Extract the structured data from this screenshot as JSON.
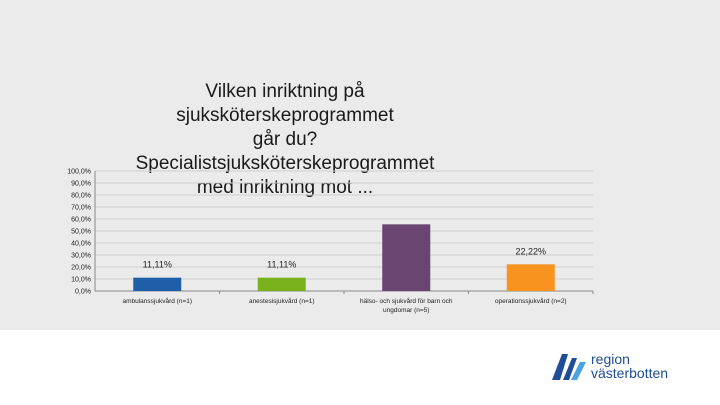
{
  "chart_data": {
    "type": "bar",
    "title": "Vilken inriktning på sjuksköterskeprogrammet går du? Specialistsjuksköterskeprogrammet med inriktning mot ...",
    "title_lines": [
      "Vilken inriktning på sjuksköterskeprogrammet",
      "går du? Specialistsjuksköterskeprogrammet",
      "med inriktning mot ..."
    ],
    "categories": [
      "ambulanssjukvård (n=1)",
      "anestesisjukvård (n=1)",
      "hälso- och sjukvård för barn och ungdomar (n=5)",
      "operationssjukvård (n=2)"
    ],
    "category_lines": [
      [
        "ambulanssjukvård (n=1)"
      ],
      [
        "anestesisjukvård (n=1)"
      ],
      [
        "hälso- och sjukvård för barn och",
        "ungdomar (n=5)"
      ],
      [
        "operationssjukvård (n=2)"
      ]
    ],
    "values": [
      11.11,
      11.11,
      55.56,
      22.22
    ],
    "data_labels": [
      "11,11%",
      "11,11%",
      "",
      "22,22%"
    ],
    "colors": [
      "#1f5fa8",
      "#7ab21d",
      "#6b4571",
      "#f7931e"
    ],
    "ylim": [
      0,
      100
    ],
    "yticks": [
      "0,0%",
      "10,0%",
      "20,0%",
      "30,0%",
      "40,0%",
      "50,0%",
      "60,0%",
      "70,0%",
      "80,0%",
      "90,0%",
      "100,0%"
    ],
    "xlabel": "",
    "ylabel": "",
    "grid": true
  },
  "logo": {
    "line1": "region",
    "line2": "västerbotten",
    "colors": [
      "#1f4e96",
      "#4aa3df"
    ]
  }
}
